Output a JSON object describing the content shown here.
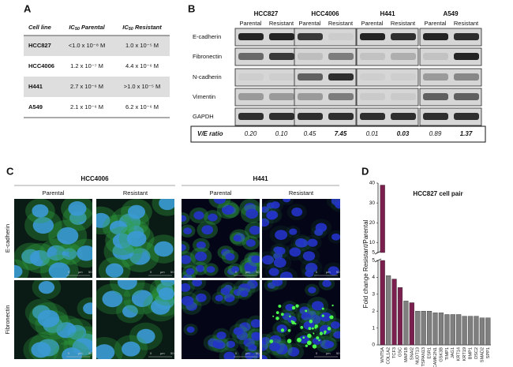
{
  "panel_a": {
    "label": "A",
    "header": {
      "cell_line": "Cell line",
      "parental": {
        "ic": "IC",
        "sub": "50",
        "rest": " Parental"
      },
      "resistant": {
        "ic": "IC",
        "sub": "50",
        "rest": " Resistant"
      }
    },
    "rows": [
      {
        "cell": "HCC827",
        "parental": "<1.0 x 10⁻⁸ M",
        "resistant": "1.0 x 10⁻⁵ M"
      },
      {
        "cell": "HCC4006",
        "parental": "1.2 x 10⁻⁷ M",
        "resistant": "4.4 x 10⁻⁶ M"
      },
      {
        "cell": "H441",
        "parental": "2.7 x 10⁻⁶ M",
        "resistant": ">1.0 x 10⁻⁵ M"
      },
      {
        "cell": "A549",
        "parental": "2.1 x 10⁻⁶ M",
        "resistant": "6.2 x 10⁻⁶ M"
      }
    ]
  },
  "panel_b": {
    "label": "B",
    "cell_lines": [
      "HCC827",
      "HCC4006",
      "H441",
      "A549"
    ],
    "conditions": [
      "Parental",
      "Resistant"
    ],
    "proteins": [
      "E-cadherin",
      "Fibronectin",
      "N-cadherin",
      "Vimentin",
      "GAPDH"
    ],
    "ratio_label": "V/E ratio",
    "ratios": [
      "0.20",
      "0.10",
      "0.45",
      "7.45",
      "0.01",
      "0.03",
      "0.89",
      "1.37"
    ],
    "ratio_bold": [
      false,
      false,
      false,
      true,
      false,
      true,
      false,
      true
    ]
  },
  "panel_c": {
    "label": "C",
    "cell_lines": [
      "HCC4006",
      "H441"
    ],
    "conditions": [
      "Parental",
      "Resistant"
    ],
    "stains": [
      "E-cadherin",
      "Fibronectin"
    ],
    "scale_bar": [
      "0",
      "µm",
      "50"
    ]
  },
  "panel_d": {
    "label": "D"
  },
  "chart_data": {
    "type": "bar",
    "title": "HCC827 cell pair",
    "ylabel": "Fold change Resistant/Parental",
    "categories": [
      "WNT5A",
      "COL1A2",
      "TCF3",
      "GSC",
      "MAP1B",
      "SNAI2",
      "NUDT13",
      "TSPAN13",
      "ESR1",
      "CAMK2N1",
      "GSK3B",
      "TIMP1",
      "JAG1",
      "KRT14",
      "KRT19",
      "BMP1",
      "DSC2",
      "SMAD2",
      "SPP1"
    ],
    "values": [
      39,
      4.1,
      3.9,
      3.4,
      2.6,
      2.5,
      2.0,
      2.0,
      2.0,
      1.9,
      1.9,
      1.8,
      1.8,
      1.8,
      1.7,
      1.7,
      1.7,
      1.6,
      1.6
    ],
    "colors": [
      "#7a1f4e",
      "#7f7f7f",
      "#7a1f4e",
      "#7a1f4e",
      "#7f7f7f",
      "#7a1f4e",
      "#7f7f7f",
      "#7f7f7f",
      "#7f7f7f",
      "#7f7f7f",
      "#7f7f7f",
      "#7f7f7f",
      "#7f7f7f",
      "#7f7f7f",
      "#7f7f7f",
      "#7f7f7f",
      "#7f7f7f",
      "#7f7f7f",
      "#7f7f7f"
    ],
    "ylim_lower": [
      0,
      5
    ],
    "yticks_lower": [
      0,
      1,
      2,
      3,
      4,
      5
    ],
    "ylim_upper": [
      5,
      40
    ],
    "yticks_upper": [
      5,
      10,
      20,
      30,
      40
    ]
  }
}
